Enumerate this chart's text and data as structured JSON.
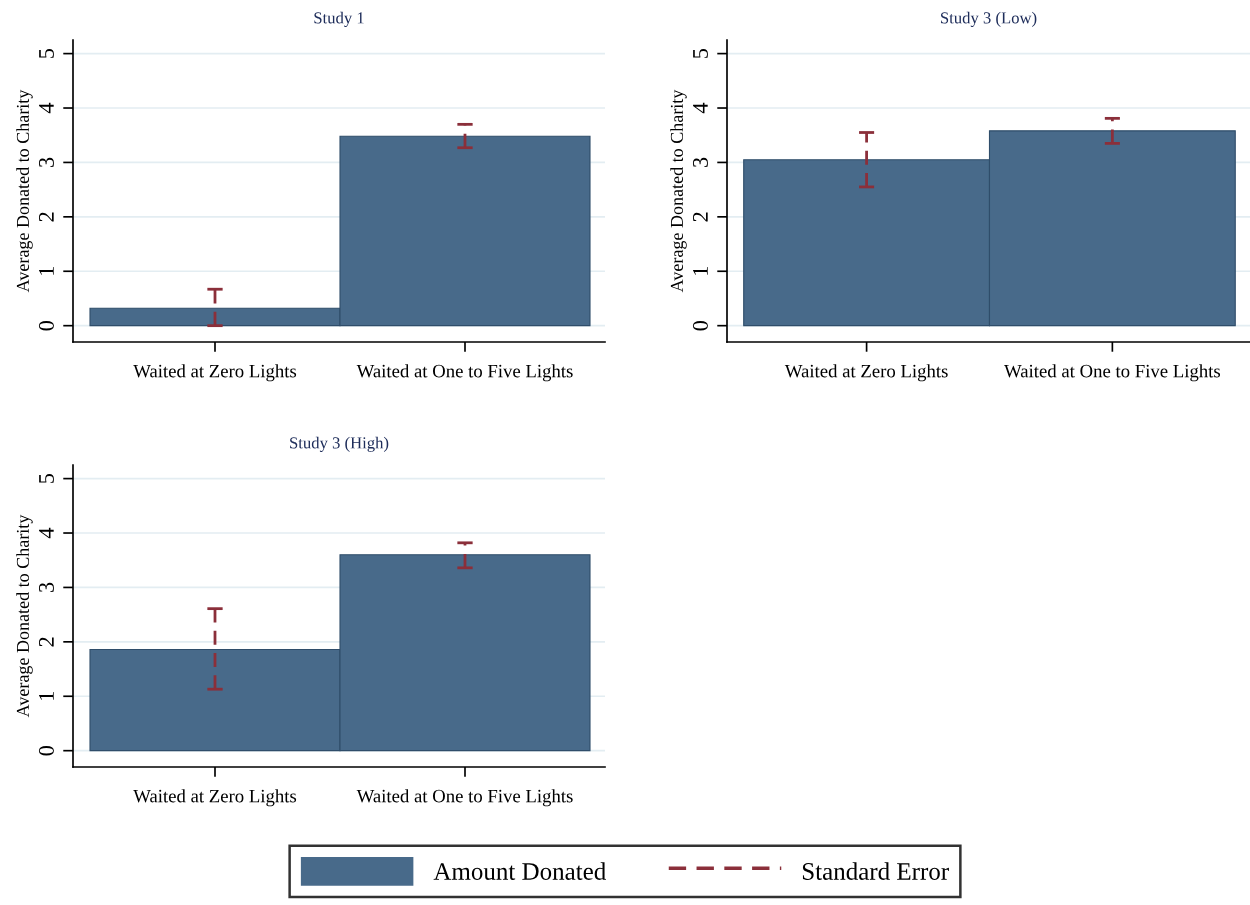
{
  "chart_data": [
    {
      "type": "bar",
      "title": "Study 1",
      "ylabel": "Average Donated to Charity",
      "categories": [
        "Waited at Zero Lights",
        "Waited at One to Five Lights"
      ],
      "series": [
        {
          "name": "Amount Donated",
          "color": "#486a8a",
          "values": [
            0.32,
            3.48
          ],
          "errors": [
            [
              0.0,
              0.67
            ],
            [
              3.27,
              3.7
            ]
          ]
        }
      ],
      "ylim": [
        -0.3,
        5.25
      ],
      "yticks": [
        0,
        1,
        2,
        3,
        4,
        5
      ],
      "grid": "y",
      "legend": "bottom",
      "annotations": [
        "Standard Error"
      ]
    },
    {
      "type": "bar",
      "title": "Study 3 (Low)",
      "ylabel": "Average Donated to Charity",
      "categories": [
        "Waited at Zero Lights",
        "Waited at One to Five Lights"
      ],
      "series": [
        {
          "color": "#486a8a",
          "values": [
            3.05,
            3.58
          ],
          "errors": [
            [
              2.55,
              3.55
            ],
            [
              3.35,
              3.81
            ]
          ]
        }
      ],
      "ylim": [
        -0.3,
        5.25
      ],
      "yticks": [
        0,
        1,
        2,
        3,
        4,
        5
      ],
      "grid": "y"
    },
    {
      "type": "bar",
      "title": "Study 3 (High)",
      "ylabel": "Average Donated to Charity",
      "categories": [
        "Waited at Zero Lights",
        "Waited at One to Five Lights"
      ],
      "series": [
        {
          "color": "#486a8a",
          "values": [
            1.86,
            3.6
          ],
          "errors": [
            [
              1.13,
              2.61
            ],
            [
              3.36,
              3.82
            ]
          ]
        }
      ],
      "ylim": [
        -0.3,
        5.25
      ],
      "yticks": [
        0,
        1,
        2,
        3,
        4,
        5
      ],
      "grid": "y"
    }
  ]
}
